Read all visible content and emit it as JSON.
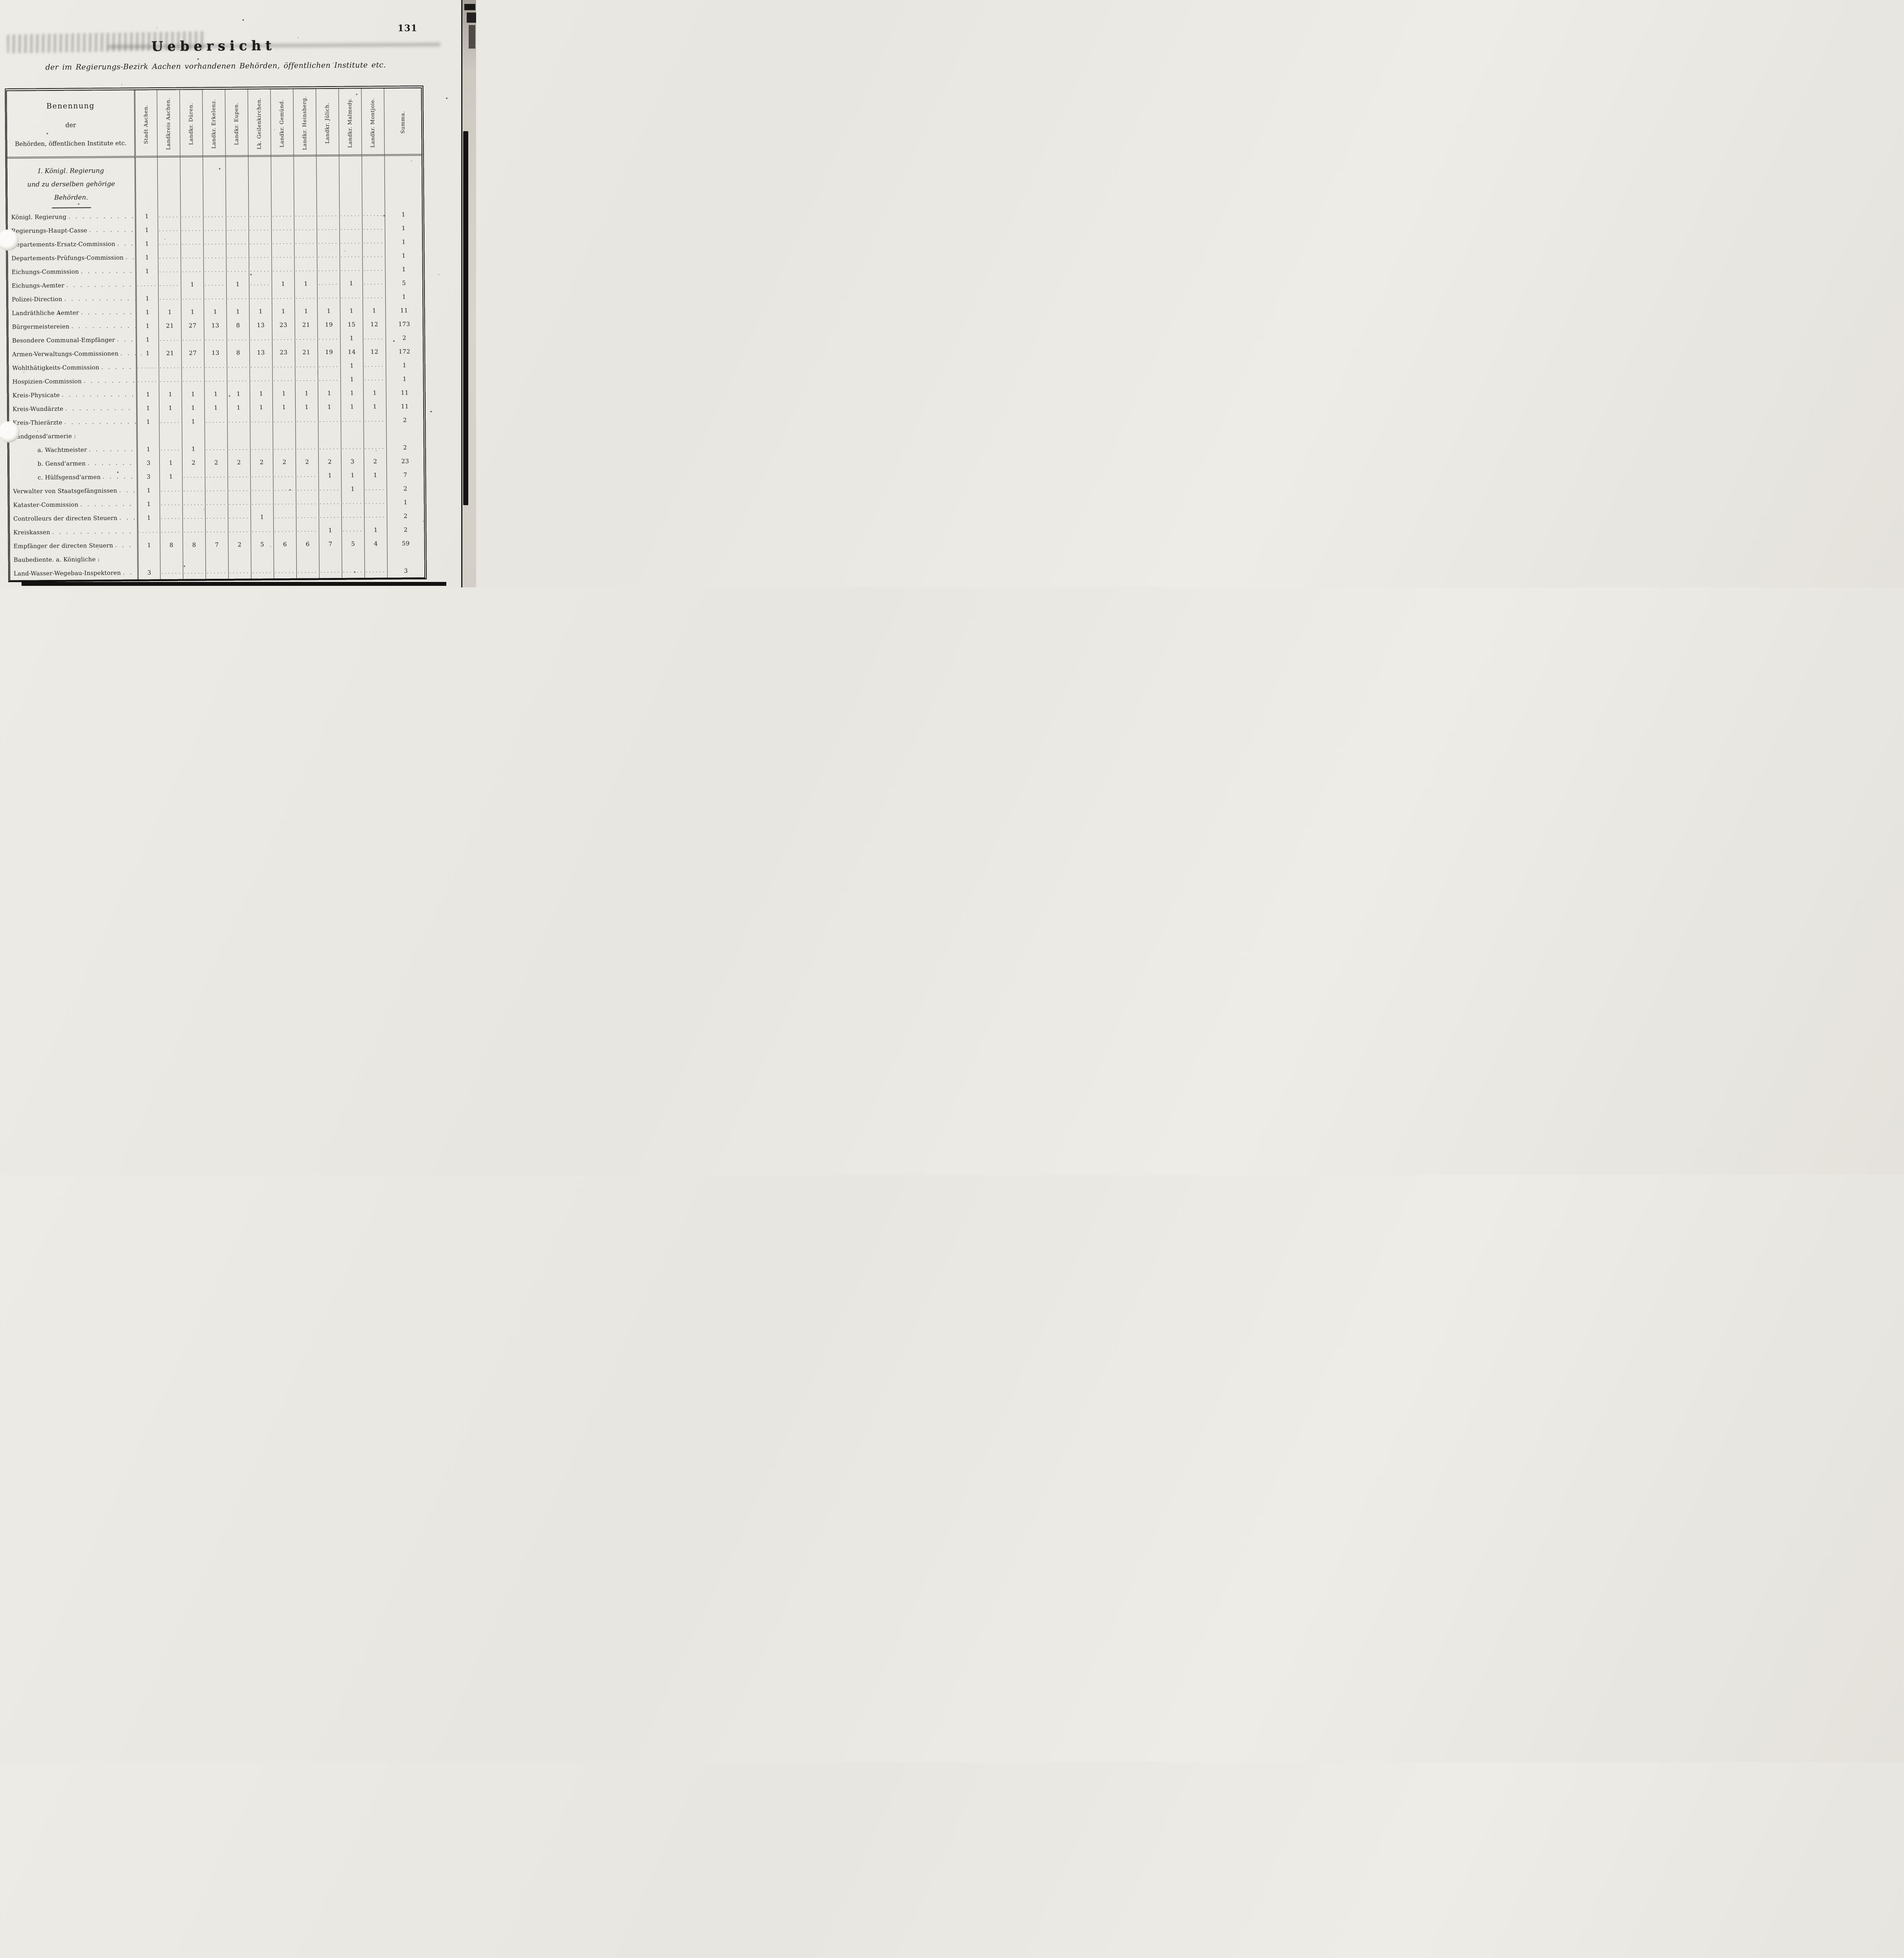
{
  "page": {
    "number": "131",
    "title": "Uebersicht",
    "subtitle": "der im Regierungs-Bezirk Aachen vorhandenen Behörden, öffentlichen Institute etc."
  },
  "table": {
    "row_header": {
      "line1": "Benennung",
      "line2": "der",
      "line3": "Behörden, öffentlichen Institute etc."
    },
    "columns": [
      "Stadt Aachen.",
      "Landkreis Aachen.",
      "Landkr. Düren.",
      "Landkr. Erkelenz.",
      "Landkr. Eupen.",
      "Lk. Geilenkirchen.",
      "Landkr. Gemünd.",
      "Landkr. Heinsberg.",
      "Landkr. Jülich.",
      "Landkr. Malmedy.",
      "Landkr. Montjoie.",
      "Summa."
    ],
    "section": {
      "line1": "I. Königl. Regierung",
      "line2": "und zu derselben gehörige",
      "line3": "Behörden."
    },
    "rows": [
      {
        "label": "Königl. Regierung",
        "values": [
          "1",
          "",
          "",
          "",
          "",
          "",
          "",
          "",
          "",
          "",
          "",
          "1"
        ]
      },
      {
        "label": "Regierungs-Haupt-Casse",
        "values": [
          "1",
          "",
          "",
          "",
          "",
          "",
          "",
          "",
          "",
          "",
          "",
          "1"
        ]
      },
      {
        "label": "Departements-Ersatz-Commission",
        "values": [
          "1",
          "",
          "",
          "",
          "",
          "",
          "",
          "",
          "",
          "",
          "",
          "1"
        ]
      },
      {
        "label": "Departements-Prüfungs-Commission",
        "values": [
          "1",
          "",
          "",
          "",
          "",
          "",
          "",
          "",
          "",
          "",
          "",
          "1"
        ]
      },
      {
        "label": "Eichungs-Commission",
        "values": [
          "1",
          "",
          "",
          "",
          "",
          "",
          "",
          "",
          "",
          "",
          "",
          "1"
        ]
      },
      {
        "label": "Eichungs-Aemter",
        "values": [
          "",
          "",
          "1",
          "",
          "1",
          "",
          "1",
          "1",
          "",
          "1",
          "",
          "5"
        ]
      },
      {
        "label": "Polizei-Direction",
        "values": [
          "1",
          "",
          "",
          "",
          "",
          "",
          "",
          "",
          "",
          "",
          "",
          "1"
        ]
      },
      {
        "label": "Landräthliche Aemter",
        "values": [
          "1",
          "1",
          "1",
          "1",
          "1",
          "1",
          "1",
          "1",
          "1",
          "1",
          "1",
          "11"
        ]
      },
      {
        "label": "Bürgermeistereien",
        "values": [
          "1",
          "21",
          "27",
          "13",
          "8",
          "13",
          "23",
          "21",
          "19",
          "15",
          "12",
          "173"
        ]
      },
      {
        "label": "Besondere Communal-Empfänger",
        "values": [
          "1",
          "",
          "",
          "",
          "",
          "",
          "",
          "",
          "",
          "1",
          "",
          "2"
        ]
      },
      {
        "label": "Armen-Verwaltungs-Commissionen",
        "values": [
          "1",
          "21",
          "27",
          "13",
          "8",
          "13",
          "23",
          "21",
          "19",
          "14",
          "12",
          "172"
        ]
      },
      {
        "label": "Wohlthätigkeits-Commission",
        "values": [
          "",
          "",
          "",
          "",
          "",
          "",
          "",
          "",
          "",
          "1",
          "",
          "1"
        ]
      },
      {
        "label": "Hospizien-Commission",
        "values": [
          "",
          "",
          "",
          "",
          "",
          "",
          "",
          "",
          "",
          "1",
          "",
          "1"
        ]
      },
      {
        "label": "Kreis-Physicate",
        "values": [
          "1",
          "1",
          "1",
          "1",
          "1",
          "1",
          "1",
          "1",
          "1",
          "1",
          "1",
          "11"
        ]
      },
      {
        "label": "Kreis-Wundärzte",
        "values": [
          "1",
          "1",
          "1",
          "1",
          "1",
          "1",
          "1",
          "1",
          "1",
          "1",
          "1",
          "11"
        ]
      },
      {
        "label": "Kreis-Thierärzte",
        "values": [
          "1",
          "",
          "1",
          "",
          "",
          "",
          "",
          "",
          "",
          "",
          "",
          "2"
        ]
      },
      {
        "label": "Landgensd'armerie :",
        "heading": true,
        "values": [
          "",
          "",
          "",
          "",
          "",
          "",
          "",
          "",
          "",
          "",
          "",
          ""
        ]
      },
      {
        "label": "a. Wachtmeister",
        "indent": true,
        "values": [
          "1",
          "",
          "1",
          "",
          "",
          "",
          "",
          "",
          "",
          "",
          "",
          "2"
        ]
      },
      {
        "label": "b. Gensd'armen",
        "indent": true,
        "values": [
          "3",
          "1",
          "2",
          "2",
          "2",
          "2",
          "2",
          "2",
          "2",
          "3",
          "2",
          "23"
        ]
      },
      {
        "label": "c. Hülfsgensd'armen",
        "indent": true,
        "values": [
          "3",
          "1",
          "",
          "",
          "",
          "",
          "",
          "",
          "1",
          "1",
          "1",
          "7"
        ]
      },
      {
        "label": "Verwalter von Staatsgefängnissen",
        "values": [
          "1",
          "",
          "",
          "",
          "",
          "",
          "",
          "",
          "",
          "1",
          "",
          "2"
        ]
      },
      {
        "label": "Kataster-Commission",
        "values": [
          "1",
          "",
          "",
          "",
          "",
          "",
          "",
          "",
          "",
          "",
          "",
          "1"
        ]
      },
      {
        "label": "Controlleurs der directen Steuern",
        "values": [
          "1",
          "",
          "",
          "",
          "",
          "1",
          "",
          "",
          "",
          "",
          "",
          "2"
        ]
      },
      {
        "label": "Kreiskassen",
        "values": [
          "",
          "",
          "",
          "",
          "",
          "",
          "",
          "",
          "1",
          "",
          "1",
          "2"
        ]
      },
      {
        "label": "Empfänger der directen Steuern",
        "values": [
          "1",
          "8",
          "8",
          "7",
          "2",
          "5",
          "6",
          "6",
          "7",
          "5",
          "4",
          "59"
        ]
      },
      {
        "label": "Baubediente. a. Königliche :",
        "heading": true,
        "values": [
          "",
          "",
          "",
          "",
          "",
          "",
          "",
          "",
          "",
          "",
          "",
          ""
        ]
      },
      {
        "label": "Land-Wasser-Wegebau-Inspektoren",
        "values": [
          "3",
          "",
          "",
          "",
          "",
          "",
          "",
          "",
          "",
          "",
          "",
          "3"
        ]
      }
    ]
  }
}
